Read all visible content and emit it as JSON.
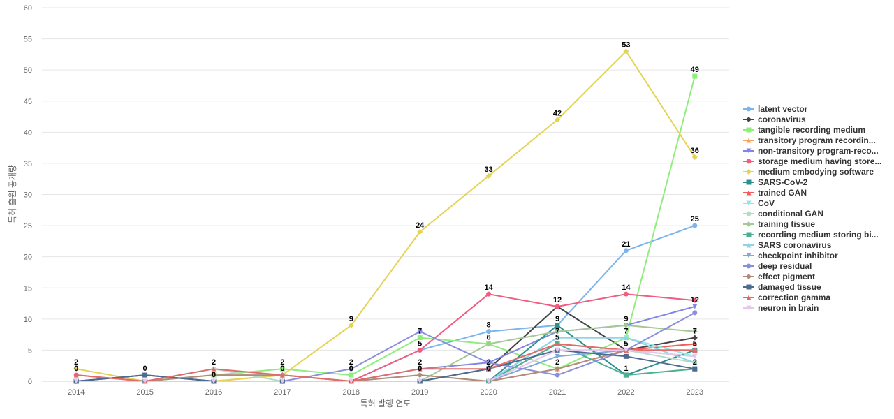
{
  "chart_data": {
    "type": "line",
    "title": "",
    "xlabel": "특허 발행 연도",
    "ylabel": "특허 출원 공개량",
    "ylim": [
      0,
      60
    ],
    "y_ticks": [
      "0",
      "5",
      "10",
      "15",
      "20",
      "25",
      "30",
      "35",
      "40",
      "45",
      "50",
      "55",
      "60"
    ],
    "categories": [
      "2014",
      "2015",
      "2016",
      "2017",
      "2018",
      "2019",
      "2020",
      "2021",
      "2022",
      "2023"
    ],
    "grid": true,
    "legend_position": "right",
    "series": [
      {
        "name": "latent vector",
        "color": "#7cb5ec",
        "marker": "circle",
        "values": [
          0,
          0,
          0,
          0,
          0,
          5,
          8,
          9,
          21,
          25
        ]
      },
      {
        "name": "coronavirus",
        "color": "#434348",
        "marker": "diamond",
        "values": [
          0,
          1,
          0,
          0,
          0,
          0,
          2,
          12,
          5,
          7
        ]
      },
      {
        "name": "tangible recording medium",
        "color": "#90ed7d",
        "marker": "square",
        "values": [
          0,
          0,
          1,
          2,
          1,
          7,
          6,
          2,
          7,
          49
        ]
      },
      {
        "name": "transitory program recordin...",
        "color": "#f7a35c",
        "marker": "triangle",
        "values": [
          0,
          0,
          0,
          1,
          0,
          0,
          0,
          2,
          5,
          6
        ]
      },
      {
        "name": "non-transitory program-reco...",
        "color": "#8085e9",
        "marker": "triangle-down",
        "values": [
          0,
          0,
          0,
          0,
          0,
          2,
          3,
          8,
          9,
          12
        ]
      },
      {
        "name": "storage medium having store...",
        "color": "#f15c80",
        "marker": "circle",
        "values": [
          1,
          0,
          0,
          0,
          0,
          5,
          14,
          12,
          14,
          13
        ]
      },
      {
        "name": "medium embodying software",
        "color": "#e4d354",
        "marker": "diamond",
        "values": [
          2,
          0,
          0,
          1,
          9,
          24,
          33,
          42,
          53,
          36
        ]
      },
      {
        "name": "SARS-CoV-2",
        "color": "#2b908f",
        "marker": "square",
        "values": [
          0,
          0,
          0,
          0,
          0,
          0,
          0,
          9,
          1,
          5
        ]
      },
      {
        "name": "trained GAN",
        "color": "#f45b5b",
        "marker": "triangle",
        "values": [
          0,
          0,
          0,
          0,
          0,
          0,
          0,
          6,
          5,
          6
        ]
      },
      {
        "name": "CoV",
        "color": "#91e8e1",
        "marker": "triangle-down",
        "values": [
          0,
          0,
          0,
          0,
          0,
          0,
          0,
          7,
          7,
          4
        ]
      },
      {
        "name": "conditional GAN",
        "color": "#b5dbc7",
        "marker": "circle",
        "values": [
          0,
          0,
          2,
          0,
          0,
          1,
          0,
          5,
          5,
          3
        ]
      },
      {
        "name": "training tissue",
        "color": "#a6c796",
        "marker": "diamond",
        "values": [
          0,
          0,
          0,
          0,
          0,
          0,
          6,
          8,
          9,
          8
        ]
      },
      {
        "name": "recording medium storing bi...",
        "color": "#4caf91",
        "marker": "square",
        "values": [
          0,
          0,
          0,
          0,
          0,
          0,
          0,
          6,
          1,
          2
        ]
      },
      {
        "name": "SARS coronavirus",
        "color": "#8fd3e8",
        "marker": "triangle",
        "values": [
          0,
          0,
          0,
          0,
          0,
          0,
          0,
          7,
          7,
          3
        ]
      },
      {
        "name": "checkpoint inhibitor",
        "color": "#7fa8d8",
        "marker": "triangle-down",
        "values": [
          0,
          0,
          0,
          0,
          0,
          0,
          0,
          4,
          5,
          4
        ]
      },
      {
        "name": "deep residual",
        "color": "#8b8fd9",
        "marker": "circle",
        "values": [
          0,
          0,
          0,
          0,
          2,
          8,
          3,
          1,
          5,
          11
        ]
      },
      {
        "name": "effect pigment",
        "color": "#b08a7a",
        "marker": "diamond",
        "values": [
          0,
          0,
          1,
          1,
          0,
          1,
          0,
          2,
          5,
          5
        ]
      },
      {
        "name": "damaged tissue",
        "color": "#4d6a8f",
        "marker": "square",
        "values": [
          0,
          1,
          0,
          0,
          0,
          0,
          2,
          5,
          4,
          2
        ]
      },
      {
        "name": "correction gamma",
        "color": "#e06b6b",
        "marker": "triangle",
        "values": [
          1,
          0,
          2,
          1,
          0,
          2,
          2,
          6,
          5,
          5
        ]
      },
      {
        "name": "neuron in brain",
        "color": "#e6c7ee",
        "marker": "triangle-down",
        "values": [
          0,
          0,
          0,
          0,
          0,
          0,
          0,
          5,
          5,
          4
        ]
      }
    ],
    "data_labels": [
      {
        "category": "2014",
        "value": 2,
        "text": "2"
      },
      {
        "category": "2014",
        "value": 1,
        "text": "0"
      },
      {
        "category": "2015",
        "value": 1,
        "text": "0"
      },
      {
        "category": "2016",
        "value": 2,
        "text": "2"
      },
      {
        "category": "2016",
        "value": 0,
        "text": "0"
      },
      {
        "category": "2017",
        "value": 2,
        "text": "2"
      },
      {
        "category": "2017",
        "value": 1,
        "text": "0"
      },
      {
        "category": "2018",
        "value": 9,
        "text": "9"
      },
      {
        "category": "2018",
        "value": 2,
        "text": "2"
      },
      {
        "category": "2018",
        "value": 1,
        "text": "0"
      },
      {
        "category": "2019",
        "value": 24,
        "text": "24"
      },
      {
        "category": "2019",
        "value": 7,
        "text": "7"
      },
      {
        "category": "2019",
        "value": 5,
        "text": "5"
      },
      {
        "category": "2019",
        "value": 2,
        "text": "2"
      },
      {
        "category": "2019",
        "value": 1,
        "text": "0"
      },
      {
        "category": "2020",
        "value": 33,
        "text": "33"
      },
      {
        "category": "2020",
        "value": 14,
        "text": "14"
      },
      {
        "category": "2020",
        "value": 8,
        "text": "8"
      },
      {
        "category": "2020",
        "value": 6,
        "text": "6"
      },
      {
        "category": "2020",
        "value": 2,
        "text": "2"
      },
      {
        "category": "2020",
        "value": 1,
        "text": "0"
      },
      {
        "category": "2021",
        "value": 42,
        "text": "42"
      },
      {
        "category": "2021",
        "value": 12,
        "text": "12"
      },
      {
        "category": "2021",
        "value": 9,
        "text": "9"
      },
      {
        "category": "2021",
        "value": 7,
        "text": "7"
      },
      {
        "category": "2021",
        "value": 6,
        "text": "5"
      },
      {
        "category": "2021",
        "value": 2,
        "text": "2"
      },
      {
        "category": "2022",
        "value": 53,
        "text": "53"
      },
      {
        "category": "2022",
        "value": 21,
        "text": "21"
      },
      {
        "category": "2022",
        "value": 14,
        "text": "14"
      },
      {
        "category": "2022",
        "value": 9,
        "text": "9"
      },
      {
        "category": "2022",
        "value": 7,
        "text": "7"
      },
      {
        "category": "2022",
        "value": 5,
        "text": "5"
      },
      {
        "category": "2022",
        "value": 1,
        "text": "1"
      },
      {
        "category": "2023",
        "value": 49,
        "text": "49"
      },
      {
        "category": "2023",
        "value": 36,
        "text": "36"
      },
      {
        "category": "2023",
        "value": 25,
        "text": "25"
      },
      {
        "category": "2023",
        "value": 12,
        "text": "12"
      },
      {
        "category": "2023",
        "value": 7,
        "text": "7"
      },
      {
        "category": "2023",
        "value": 5,
        "text": "5"
      },
      {
        "category": "2023",
        "value": 2,
        "text": "2"
      }
    ]
  }
}
